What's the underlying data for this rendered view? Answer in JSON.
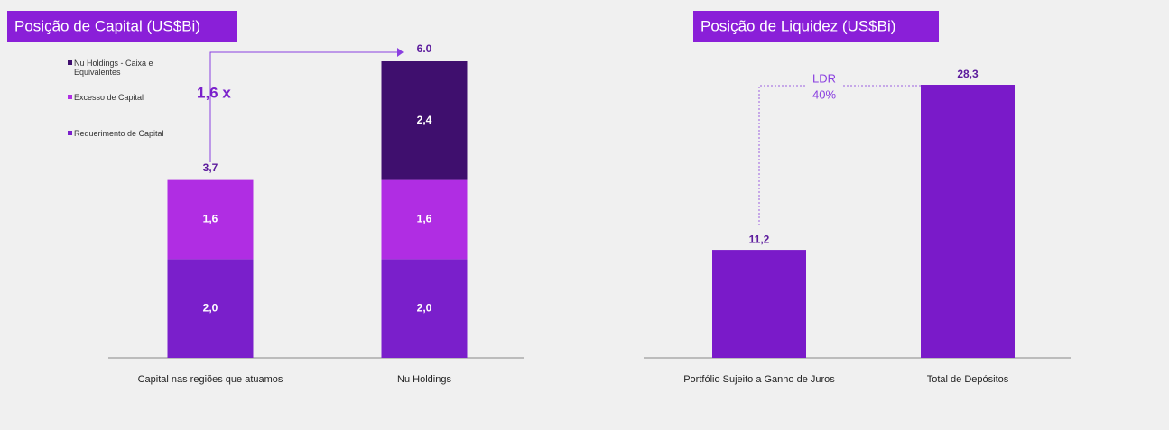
{
  "chart_data": [
    {
      "type": "bar",
      "stacked": true,
      "title": "Posição de Capital  (US$Bi)",
      "categories": [
        "Capital nas regiões que atuamos",
        "Nu Holdings"
      ],
      "series": [
        {
          "name": "Requerimento de Capital",
          "color": "#7a1fcb",
          "values": [
            2.0,
            2.0
          ],
          "value_labels": [
            "2,0",
            "2,0"
          ]
        },
        {
          "name": "Excesso de Capital",
          "color": "#b02de3",
          "values": [
            1.6,
            1.6
          ],
          "value_labels": [
            "1,6",
            "1,6"
          ]
        },
        {
          "name": "Nu Holdings - Caixa e Equivalentes",
          "color": "#3f0f6e",
          "values": [
            null,
            2.4
          ],
          "value_labels": [
            null,
            "2,4"
          ]
        }
      ],
      "totals": [
        3.7,
        6.0
      ],
      "total_labels": [
        "3,7",
        "6.0"
      ],
      "annotation": "1,6 x"
    },
    {
      "type": "bar",
      "title": "Posição de Liquidez (US$Bi)",
      "categories": [
        "Portfólio Sujeito a Ganho de Juros",
        "Total de Depósitos"
      ],
      "values": [
        11.2,
        28.3
      ],
      "value_labels": [
        "11,2",
        "28,3"
      ],
      "color": "#7a1ac9",
      "annotations": [
        "LDR",
        "40%"
      ]
    }
  ]
}
